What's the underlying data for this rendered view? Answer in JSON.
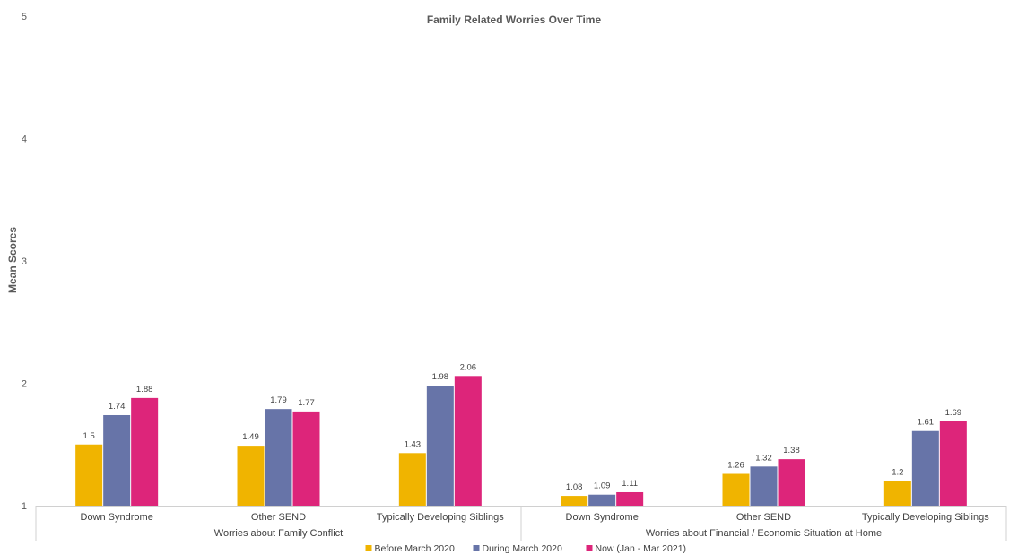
{
  "chart_data": {
    "type": "bar",
    "title": "Family Related Worries Over Time",
    "ylabel": "Mean Scores",
    "ylim": [
      1,
      5
    ],
    "yticks": [
      1,
      2,
      3,
      4,
      5
    ],
    "legend_position": "bottom",
    "groups": [
      {
        "label": "Worries about Family Conflict",
        "categories": [
          "Down Syndrome",
          "Other SEND",
          "Typically Developing Siblings"
        ]
      },
      {
        "label": "Worries about Financial / Economic Situation at Home",
        "categories": [
          "Down Syndrome",
          "Other SEND",
          "Typically Developing Siblings"
        ]
      }
    ],
    "categories": [
      "Down Syndrome",
      "Other SEND",
      "Typically Developing Siblings",
      "Down Syndrome",
      "Other SEND",
      "Typically Developing Siblings"
    ],
    "series": [
      {
        "name": "Before March 2020",
        "color": "#F0B400",
        "values": [
          1.5,
          1.49,
          1.43,
          1.08,
          1.26,
          1.2
        ]
      },
      {
        "name": "During March 2020",
        "color": "#6774A8",
        "values": [
          1.74,
          1.79,
          1.98,
          1.09,
          1.32,
          1.61
        ]
      },
      {
        "name": "Now (Jan - Mar 2021)",
        "color": "#DD257A",
        "values": [
          1.88,
          1.77,
          2.06,
          1.11,
          1.38,
          1.69
        ]
      }
    ]
  }
}
